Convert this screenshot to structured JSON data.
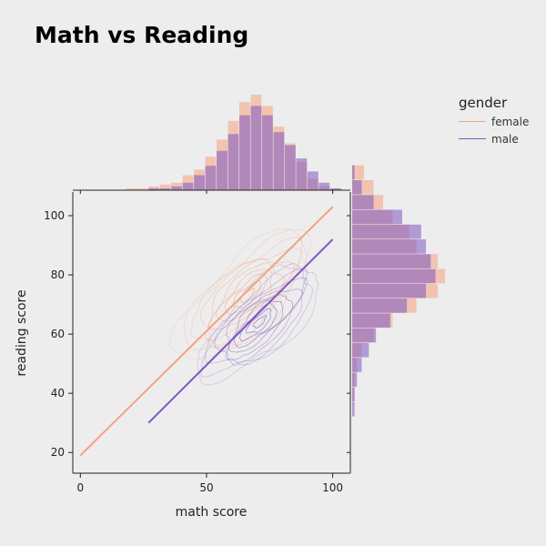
{
  "chart_data": {
    "type": "scatter",
    "title": "Math vs Reading",
    "xlabel": "math score",
    "ylabel": "reading score",
    "xlim": [
      -3,
      107
    ],
    "ylim": [
      13,
      108
    ],
    "xticks": [
      0,
      50,
      100
    ],
    "yticks": [
      20,
      40,
      60,
      80,
      100
    ],
    "grid": false,
    "legend": {
      "title": "gender",
      "placement": "top-right"
    },
    "series": [
      {
        "name": "female",
        "color": "#f5a27e",
        "regression": {
          "x": [
            0,
            100
          ],
          "y": [
            19,
            103
          ]
        },
        "kde_center": [
          66,
          73
        ],
        "math_hist": {
          "bin_start": 0,
          "bin_width": 4.5,
          "counts": [
            0,
            0,
            0,
            0,
            1,
            1,
            2,
            3,
            4,
            8,
            11,
            18,
            27,
            37,
            47,
            51,
            45,
            34,
            25,
            15,
            6,
            2,
            1,
            0
          ]
        },
        "reading_hist": {
          "bin_start": 17,
          "bin_width": 5,
          "counts": [
            0,
            0,
            0,
            0,
            1,
            1,
            2,
            4,
            9,
            17,
            27,
            36,
            39,
            36,
            27,
            24,
            17,
            13,
            9,
            5
          ]
        }
      },
      {
        "name": "male",
        "color": "#7e57c2",
        "regression": {
          "x": [
            27,
            100
          ],
          "y": [
            30,
            92
          ]
        },
        "kde_center": [
          71,
          64
        ],
        "math_hist": {
          "bin_start": 0,
          "bin_width": 4.5,
          "counts": [
            0,
            0,
            0,
            0,
            0,
            0,
            1,
            1,
            2,
            4,
            8,
            13,
            21,
            30,
            40,
            45,
            40,
            31,
            24,
            17,
            10,
            4,
            1,
            0
          ]
        },
        "reading_hist": {
          "bin_start": 17,
          "bin_width": 5,
          "counts": [
            0,
            0,
            0,
            1,
            1,
            2,
            4,
            7,
            10,
            16,
            23,
            31,
            35,
            33,
            31,
            29,
            21,
            9,
            4,
            1
          ]
        }
      }
    ]
  }
}
